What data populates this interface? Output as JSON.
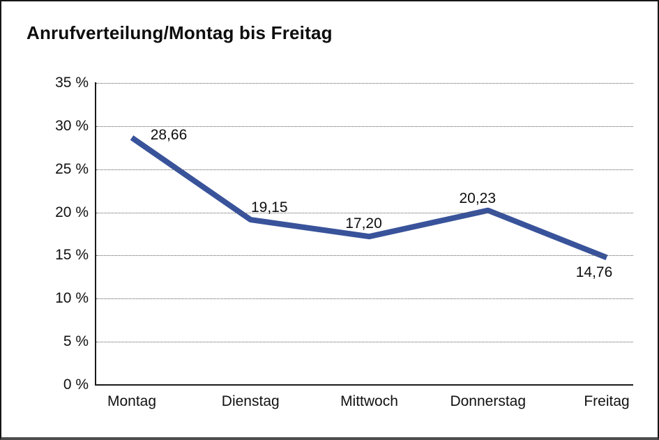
{
  "window": {
    "title": "Anrufverteilung/Montag bis Freitag"
  },
  "chart_data": {
    "type": "line",
    "title": "Anrufverteilung/Montag bis Freitag",
    "categories": [
      "Montag",
      "Dienstag",
      "Mittwoch",
      "Donnerstag",
      "Freitag"
    ],
    "series": [
      {
        "name": "Anrufverteilung",
        "values": [
          28.66,
          19.15,
          17.2,
          20.23,
          14.76
        ]
      }
    ],
    "point_labels": [
      "28,66",
      "19,15",
      "17,20",
      "20,23",
      "14,76"
    ],
    "y_tick_labels": [
      "35 %",
      "30 %",
      "25 %",
      "20 %",
      "15 %",
      "10 %",
      "5 %",
      "0 %"
    ],
    "y_tick_values": [
      35,
      30,
      25,
      20,
      15,
      10,
      5,
      0
    ],
    "ylim": [
      0,
      35
    ],
    "xlabel": "",
    "ylabel": "",
    "grid": "horizontal-dotted",
    "legend_position": "none",
    "colors": {
      "line": "#39539B",
      "text": "#111111",
      "grid": "#5a5a5a",
      "axis": "#1a1a1a",
      "background": "#ffffff"
    }
  }
}
